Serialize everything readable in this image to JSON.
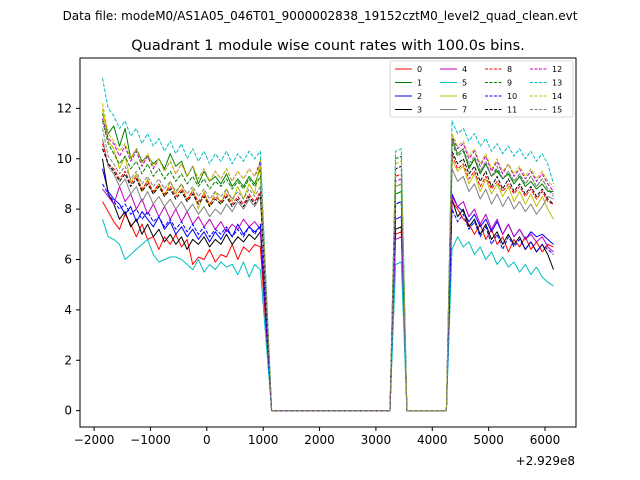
{
  "chart_data": {
    "type": "line",
    "suptitle": "Data file: modeM0/AS1A05_046T01_9000002838_19152cztM0_level2_quad_clean.evt",
    "title": "Quadrant 1 module wise count rates with 100.0s bins.",
    "x_offset_label": "+2.929e8",
    "xlim": [
      -2250,
      6550
    ],
    "ylim": [
      -0.65,
      14.0
    ],
    "x_ticks": [
      -2000,
      -1000,
      0,
      1000,
      2000,
      3000,
      4000,
      5000,
      6000
    ],
    "x_tick_labels": [
      "−2000",
      "−1000",
      "0",
      "1000",
      "2000",
      "3000",
      "4000",
      "5000",
      "6000"
    ],
    "y_ticks": [
      0,
      2,
      4,
      6,
      8,
      10,
      12
    ],
    "y_tick_labels": [
      "0",
      "2",
      "4",
      "6",
      "8",
      "10",
      "12"
    ],
    "segments": [
      {
        "start": -1850,
        "count": 29
      },
      {
        "start": 1150,
        "count": 22
      },
      {
        "start": 3350,
        "count": 2
      },
      {
        "start": 3550,
        "count": 8
      },
      {
        "start": 4350,
        "count": 19
      }
    ],
    "series": [
      {
        "name": "0",
        "color": "#ff0000",
        "dash": "solid",
        "v1": [
          8.3,
          7.9,
          7.5,
          7.2,
          7.8,
          7.4,
          6.9,
          7.4,
          6.8,
          6.9,
          6.4,
          6.9,
          6.6,
          7.0,
          6.5,
          6.8,
          5.8,
          6.1,
          6.0,
          6.4,
          5.9,
          6.2,
          6.1,
          6.6,
          6.0,
          6.5,
          6.3,
          6.6,
          6.5
        ],
        "v2": [
          7.0,
          7.1
        ],
        "v3": [
          8.3,
          8.0,
          7.6,
          7.4,
          7.0,
          7.4,
          6.8,
          7.2,
          6.6,
          6.9,
          6.3,
          6.8,
          6.5,
          6.9,
          6.4,
          6.7,
          6.3,
          6.6,
          6.5
        ]
      },
      {
        "name": "1",
        "color": "#008000",
        "dash": "solid",
        "v1": [
          11.8,
          11.0,
          11.3,
          10.5,
          11.2,
          10.0,
          10.4,
          9.9,
          10.1,
          9.8,
          10.0,
          9.6,
          10.2,
          9.7,
          9.9,
          9.3,
          9.7,
          9.0,
          9.5,
          9.1,
          9.3,
          9.0,
          9.4,
          8.9,
          9.2,
          8.9,
          9.3,
          9.0,
          9.6
        ],
        "v2": [
          8.6,
          8.7
        ],
        "v3": [
          10.8,
          10.2,
          10.4,
          9.6,
          10.0,
          9.4,
          9.8,
          9.3,
          9.5,
          9.2,
          9.4,
          9.0,
          9.3,
          8.9,
          9.1,
          8.8,
          9.0,
          8.7,
          8.7
        ]
      },
      {
        "name": "2",
        "color": "#0000ff",
        "dash": "solid",
        "v1": [
          9.6,
          8.7,
          8.4,
          8.2,
          7.8,
          8.1,
          7.5,
          7.9,
          7.6,
          7.3,
          7.7,
          7.2,
          7.5,
          7.0,
          7.3,
          6.9,
          7.2,
          6.8,
          7.1,
          6.7,
          7.1,
          6.8,
          7.2,
          6.9,
          7.4,
          7.0,
          7.3,
          7.1,
          7.3
        ],
        "v2": [
          7.6,
          7.7
        ],
        "v3": [
          8.6,
          8.1,
          7.9,
          7.5,
          7.8,
          7.3,
          7.6,
          7.1,
          7.5,
          7.0,
          7.4,
          6.9,
          7.2,
          6.8,
          7.1,
          6.9,
          7.0,
          6.8,
          6.6
        ]
      },
      {
        "name": "3",
        "color": "#000000",
        "dash": "solid",
        "v1": [
          10.0,
          8.6,
          8.2,
          7.6,
          7.9,
          7.3,
          7.6,
          7.0,
          7.4,
          6.9,
          7.2,
          6.7,
          7.0,
          6.6,
          6.9,
          6.4,
          6.8,
          6.6,
          6.9,
          6.5,
          6.8,
          6.6,
          7.0,
          6.6,
          6.9,
          6.7,
          7.0,
          6.8,
          7.1
        ],
        "v2": [
          7.2,
          7.3
        ],
        "v3": [
          8.4,
          7.7,
          8.0,
          7.3,
          7.6,
          7.0,
          7.4,
          6.8,
          7.1,
          6.6,
          7.0,
          6.6,
          6.9,
          6.4,
          6.7,
          6.3,
          6.6,
          6.2,
          5.6
        ]
      },
      {
        "name": "4",
        "color": "#bf00bf",
        "dash": "solid",
        "v1": [
          8.8,
          8.5,
          8.2,
          8.9,
          8.3,
          8.6,
          8.0,
          8.4,
          7.8,
          8.2,
          7.7,
          8.1,
          7.6,
          8.0,
          7.5,
          7.9,
          7.4,
          7.7,
          7.3,
          7.6,
          7.2,
          7.5,
          7.1,
          7.4,
          7.2,
          7.6,
          7.3,
          7.5,
          7.2
        ],
        "v2": [
          6.8,
          6.9
        ],
        "v3": [
          8.5,
          8.1,
          8.3,
          7.7,
          8.0,
          7.4,
          7.8,
          7.2,
          7.6,
          7.0,
          7.4,
          6.9,
          7.2,
          6.8,
          7.0,
          6.7,
          6.9,
          6.5,
          6.3
        ]
      },
      {
        "name": "5",
        "color": "#00bfbf",
        "dash": "solid",
        "v1": [
          7.6,
          6.9,
          6.8,
          6.6,
          6.0,
          6.2,
          6.4,
          6.6,
          6.8,
          6.2,
          5.9,
          6.0,
          6.1,
          6.1,
          6.0,
          5.8,
          5.6,
          6.0,
          5.5,
          5.8,
          5.6,
          5.9,
          5.7,
          5.8,
          5.4,
          5.9,
          5.3,
          5.8,
          5.6
        ],
        "v2": [
          5.8,
          5.9
        ],
        "v3": [
          6.4,
          6.9,
          6.5,
          6.7,
          6.2,
          6.5,
          6.0,
          6.3,
          5.8,
          6.1,
          5.7,
          5.9,
          5.5,
          5.8,
          5.4,
          5.7,
          5.3,
          5.1,
          4.95
        ]
      },
      {
        "name": "6",
        "color": "#bfbf00",
        "dash": "solid",
        "v1": [
          12.0,
          10.7,
          10.4,
          9.6,
          10.1,
          9.1,
          9.4,
          8.7,
          9.2,
          8.6,
          9.0,
          8.5,
          9.1,
          8.6,
          9.0,
          8.3,
          8.8,
          8.0,
          8.7,
          8.1,
          8.7,
          8.2,
          8.8,
          8.3,
          8.9,
          8.4,
          9.0,
          8.6,
          10.0
        ],
        "v2": [
          8.9,
          9.0
        ],
        "v3": [
          10.0,
          9.5,
          9.7,
          9.0,
          9.4,
          8.7,
          9.2,
          8.6,
          9.0,
          8.5,
          8.9,
          8.3,
          8.7,
          8.2,
          8.6,
          8.1,
          8.5,
          8.0,
          7.6
        ]
      },
      {
        "name": "7",
        "color": "#808080",
        "dash": "solid",
        "v1": [
          10.8,
          9.7,
          9.4,
          8.9,
          9.2,
          8.6,
          8.9,
          8.3,
          8.7,
          8.2,
          8.5,
          8.1,
          8.4,
          8.0,
          8.3,
          7.9,
          8.2,
          7.8,
          8.1,
          7.7,
          8.0,
          7.8,
          8.2,
          7.9,
          8.3,
          8.0,
          8.4,
          8.1,
          8.5
        ],
        "v2": [
          8.2,
          8.3
        ],
        "v3": [
          9.6,
          9.1,
          9.3,
          8.7,
          9.0,
          8.4,
          8.8,
          8.2,
          8.6,
          8.1,
          8.5,
          8.0,
          8.3,
          7.9,
          8.2,
          7.8,
          8.1,
          8.5,
          8.4
        ]
      },
      {
        "name": "8",
        "color": "#ff0000",
        "dash": "dashed",
        "v1": [
          10.6,
          9.8,
          9.6,
          9.2,
          9.5,
          9.0,
          9.3,
          8.8,
          9.1,
          8.7,
          9.0,
          8.6,
          8.9,
          8.5,
          8.8,
          8.4,
          8.7,
          8.3,
          8.6,
          8.2,
          8.5,
          8.3,
          8.6,
          8.2,
          8.5,
          8.2,
          8.6,
          8.3,
          8.7
        ],
        "v2": [
          9.3,
          9.4
        ],
        "v3": [
          10.2,
          9.6,
          9.8,
          9.2,
          9.5,
          8.9,
          9.3,
          8.8,
          9.1,
          8.7,
          9.0,
          8.6,
          8.9,
          8.5,
          8.8,
          8.4,
          8.7,
          8.3,
          8.2
        ]
      },
      {
        "name": "9",
        "color": "#008000",
        "dash": "dashed",
        "v1": [
          11.5,
          10.6,
          10.2,
          9.8,
          10.1,
          9.6,
          9.9,
          9.4,
          9.8,
          9.3,
          9.6,
          9.2,
          9.5,
          9.1,
          9.4,
          9.0,
          9.3,
          8.9,
          9.2,
          8.8,
          9.1,
          8.9,
          9.2,
          8.8,
          9.1,
          8.8,
          9.2,
          8.9,
          9.3
        ],
        "v2": [
          10.0,
          10.1
        ],
        "v3": [
          10.6,
          10.1,
          10.3,
          9.7,
          10.0,
          9.5,
          9.8,
          9.3,
          9.6,
          9.2,
          9.5,
          9.1,
          9.4,
          9.0,
          9.3,
          8.9,
          9.2,
          8.8,
          8.6
        ]
      },
      {
        "name": "10",
        "color": "#0000ff",
        "dash": "dashed",
        "v1": [
          9.0,
          8.6,
          8.3,
          8.0,
          8.2,
          7.8,
          8.0,
          7.6,
          7.9,
          7.5,
          7.7,
          7.3,
          7.6,
          7.2,
          7.5,
          7.1,
          7.4,
          7.0,
          7.3,
          6.9,
          7.2,
          7.0,
          7.3,
          6.9,
          7.2,
          6.9,
          7.3,
          7.0,
          7.4
        ],
        "v2": [
          8.2,
          8.3
        ],
        "v3": [
          8.0,
          7.5,
          7.8,
          7.2,
          7.5,
          6.9,
          7.3,
          6.6,
          7.0,
          6.4,
          6.9,
          6.5,
          6.8,
          6.4,
          6.7,
          6.3,
          6.6,
          6.4,
          6.2
        ]
      },
      {
        "name": "11",
        "color": "#000000",
        "dash": "dashed",
        "v1": [
          10.4,
          9.8,
          9.5,
          9.1,
          9.4,
          8.9,
          9.2,
          8.7,
          9.0,
          8.6,
          8.9,
          8.5,
          8.8,
          8.4,
          8.7,
          8.3,
          8.6,
          8.2,
          8.5,
          8.1,
          8.4,
          8.2,
          8.5,
          8.1,
          8.4,
          8.1,
          8.5,
          8.2,
          8.6
        ],
        "v2": [
          9.6,
          9.7
        ],
        "v3": [
          10.3,
          9.8,
          10.0,
          9.4,
          9.7,
          9.1,
          9.5,
          8.9,
          9.3,
          8.8,
          9.2,
          8.7,
          9.0,
          8.6,
          8.9,
          8.5,
          8.8,
          8.4,
          8.2
        ]
      },
      {
        "name": "12",
        "color": "#bf00bf",
        "dash": "dashed",
        "v1": [
          11.6,
          10.8,
          10.6,
          10.1,
          10.5,
          9.9,
          10.3,
          9.7,
          10.1,
          9.6,
          10.0,
          9.5,
          9.9,
          9.4,
          9.8,
          9.3,
          9.7,
          9.2,
          9.6,
          9.1,
          9.5,
          9.2,
          9.6,
          9.1,
          9.5,
          9.2,
          9.6,
          9.3,
          9.9
        ],
        "v2": [
          9.1,
          9.2
        ],
        "v3": [
          10.9,
          10.4,
          10.6,
          10.0,
          10.3,
          9.7,
          10.1,
          9.5,
          9.9,
          9.4,
          9.8,
          9.3,
          9.6,
          9.2,
          9.5,
          9.1,
          9.4,
          9.0,
          8.7
        ]
      },
      {
        "name": "13",
        "color": "#00bfbf",
        "dash": "dashed",
        "v1": [
          13.2,
          12.0,
          11.7,
          11.2,
          11.5,
          10.9,
          11.2,
          10.6,
          11.0,
          10.5,
          10.8,
          10.3,
          10.7,
          10.2,
          10.6,
          10.0,
          10.4,
          9.9,
          10.3,
          9.8,
          10.2,
          9.9,
          10.3,
          9.8,
          10.2,
          9.9,
          10.3,
          10.0,
          10.3
        ],
        "v2": [
          10.3,
          10.4
        ],
        "v3": [
          11.5,
          11.0,
          11.2,
          10.7,
          11.0,
          10.5,
          10.8,
          10.3,
          10.6,
          10.2,
          10.5,
          10.1,
          10.4,
          10.0,
          10.3,
          9.9,
          10.2,
          9.8,
          9.0
        ]
      },
      {
        "name": "14",
        "color": "#bfbf00",
        "dash": "dashed",
        "v1": [
          12.2,
          11.0,
          10.7,
          10.3,
          10.6,
          10.0,
          10.4,
          9.8,
          10.2,
          9.7,
          10.0,
          9.5,
          9.9,
          9.4,
          9.8,
          9.3,
          9.7,
          9.2,
          9.6,
          9.1,
          9.5,
          9.2,
          9.6,
          9.1,
          9.5,
          9.2,
          9.6,
          9.3,
          9.7
        ],
        "v2": [
          9.8,
          9.9
        ],
        "v3": [
          11.0,
          10.5,
          10.7,
          10.1,
          10.4,
          9.8,
          10.2,
          9.6,
          10.0,
          9.5,
          9.8,
          9.4,
          9.7,
          9.3,
          9.6,
          9.2,
          9.5,
          9.1,
          8.9
        ]
      },
      {
        "name": "15",
        "color": "#808080",
        "dash": "dashed",
        "v1": [
          11.2,
          10.1,
          9.8,
          9.4,
          9.7,
          9.2,
          9.5,
          9.0,
          9.3,
          8.9,
          9.2,
          8.8,
          9.1,
          8.7,
          9.0,
          8.6,
          8.9,
          8.5,
          8.8,
          8.4,
          8.7,
          8.5,
          8.8,
          8.4,
          8.7,
          8.4,
          8.8,
          8.5,
          8.9
        ],
        "v2": [
          8.9,
          9.0
        ],
        "v3": [
          10.7,
          10.2,
          10.4,
          9.8,
          10.1,
          9.5,
          9.9,
          9.3,
          9.7,
          9.2,
          9.5,
          9.1,
          9.4,
          9.0,
          9.3,
          8.9,
          9.2,
          8.8,
          8.5
        ]
      }
    ]
  }
}
